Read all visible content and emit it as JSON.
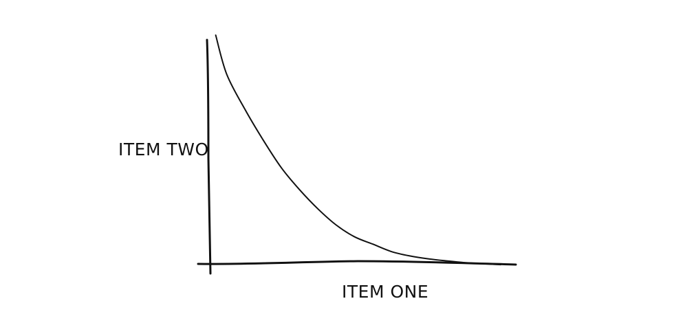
{
  "chart_data": {
    "type": "line",
    "title": "",
    "xlabel": "ITEM ONE",
    "ylabel": "ITEM TWO",
    "grid": false,
    "legend": "none",
    "axis_ticks": "none",
    "series": [
      {
        "style": "hand-drawn convex decreasing curve",
        "color": "#111111",
        "x": [
          0.2,
          0.5,
          1.0,
          1.5,
          2.0,
          2.5,
          3.0,
          3.5,
          4.0,
          4.5,
          5.0,
          5.5,
          6.0,
          6.5,
          7.0,
          7.5,
          8.0
        ],
        "y": [
          7.98,
          6.65,
          5.45,
          4.4,
          3.45,
          2.7,
          2.05,
          1.5,
          1.1,
          0.85,
          0.6,
          0.45,
          0.35,
          0.28,
          0.22,
          0.18,
          0.15
        ]
      }
    ],
    "xlim": [
      0,
      8.0
    ],
    "ylim": [
      -0.95,
      8.1
    ]
  }
}
